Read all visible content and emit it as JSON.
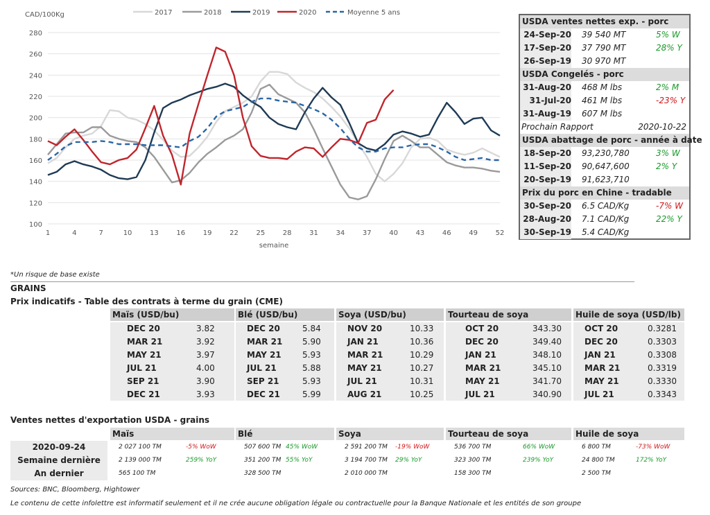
{
  "chart_data": {
    "type": "line",
    "ylabel": "CAD/100Kg",
    "xlabel": "semaine",
    "ylim": [
      100,
      280
    ],
    "xlim": [
      1,
      52
    ],
    "yticks": [
      "100",
      "120",
      "140",
      "160",
      "180",
      "200",
      "220",
      "240",
      "260",
      "280"
    ],
    "xticks": [
      "1",
      "4",
      "7",
      "10",
      "13",
      "16",
      "19",
      "22",
      "25",
      "28",
      "31",
      "34",
      "37",
      "40",
      "43",
      "46",
      "49",
      "52"
    ],
    "series": [
      {
        "name": "2017",
        "color": "#d8d8d8",
        "dash": false,
        "x": [
          1,
          2,
          3,
          4,
          5,
          6,
          7,
          8,
          9,
          10,
          11,
          12,
          13,
          14,
          15,
          16,
          17,
          18,
          19,
          20,
          21,
          22,
          23,
          24,
          25,
          26,
          27,
          28,
          29,
          30,
          31,
          32,
          33,
          34,
          35,
          36,
          37,
          38,
          39,
          40,
          41,
          42,
          43,
          44,
          45,
          46,
          47,
          48,
          49,
          50,
          51,
          52
        ],
        "values": [
          157,
          162,
          172,
          180,
          183,
          185,
          192,
          207,
          206,
          200,
          198,
          194,
          188,
          179,
          169,
          163,
          164,
          172,
          182,
          196,
          206,
          210,
          214,
          220,
          234,
          243,
          243,
          241,
          233,
          228,
          224,
          218,
          210,
          201,
          190,
          176,
          163,
          147,
          140,
          147,
          157,
          172,
          180,
          181,
          178,
          170,
          167,
          165,
          167,
          171,
          167,
          163
        ]
      },
      {
        "name": "2018",
        "color": "#9a9a9a",
        "dash": false,
        "x": [
          1,
          2,
          3,
          4,
          5,
          6,
          7,
          8,
          9,
          10,
          11,
          12,
          13,
          14,
          15,
          16,
          17,
          18,
          19,
          20,
          21,
          22,
          23,
          24,
          25,
          26,
          27,
          28,
          29,
          30,
          31,
          32,
          33,
          34,
          35,
          36,
          37,
          38,
          39,
          40,
          41,
          42,
          43,
          44,
          45,
          46,
          47,
          48,
          49,
          50,
          51,
          52
        ],
        "values": [
          165,
          175,
          185,
          186,
          186,
          191,
          191,
          183,
          180,
          178,
          177,
          172,
          163,
          151,
          139,
          141,
          148,
          158,
          166,
          172,
          179,
          183,
          189,
          205,
          227,
          231,
          222,
          218,
          214,
          205,
          189,
          171,
          154,
          137,
          125,
          123,
          126,
          142,
          161,
          178,
          183,
          178,
          172,
          172,
          165,
          158,
          155,
          153,
          153,
          152,
          150,
          149
        ]
      },
      {
        "name": "2019",
        "color": "#1e3a55",
        "dash": false,
        "x": [
          1,
          2,
          3,
          4,
          5,
          6,
          7,
          8,
          9,
          10,
          11,
          12,
          13,
          14,
          15,
          16,
          17,
          18,
          19,
          20,
          21,
          22,
          23,
          24,
          25,
          26,
          27,
          28,
          29,
          30,
          31,
          32,
          33,
          34,
          35,
          36,
          37,
          38,
          39,
          40,
          41,
          42,
          43,
          44,
          45,
          46,
          47,
          48,
          49,
          50,
          51,
          52
        ],
        "values": [
          146,
          149,
          156,
          159,
          156,
          154,
          151,
          146,
          143,
          142,
          144,
          160,
          186,
          209,
          214,
          217,
          221,
          224,
          227,
          229,
          232,
          229,
          221,
          215,
          210,
          200,
          194,
          191,
          189,
          205,
          218,
          228,
          219,
          212,
          195,
          176,
          171,
          169,
          175,
          184,
          187,
          185,
          182,
          184,
          200,
          214,
          205,
          194,
          199,
          200,
          188,
          183
        ]
      },
      {
        "name": "2020",
        "color": "#c0252c",
        "dash": false,
        "x": [
          1,
          2,
          3,
          4,
          5,
          6,
          7,
          8,
          9,
          10,
          11,
          12,
          13,
          14,
          15,
          16,
          17,
          18,
          19,
          20,
          21,
          22,
          23,
          24,
          25,
          26,
          27,
          28,
          29,
          30,
          31,
          32,
          33,
          34,
          35,
          36,
          37,
          38,
          39,
          40
        ],
        "values": [
          178,
          174,
          182,
          189,
          179,
          168,
          158,
          156,
          160,
          162,
          170,
          190,
          211,
          183,
          165,
          137,
          185,
          213,
          240,
          266,
          262,
          240,
          200,
          173,
          164,
          162,
          162,
          161,
          168,
          172,
          171,
          163,
          172,
          180,
          179,
          176,
          195,
          198,
          217,
          226
        ]
      },
      {
        "name": "Moyenne 5 ans",
        "color": "#2a66a6",
        "dash": true,
        "x": [
          1,
          2,
          3,
          4,
          5,
          6,
          7,
          8,
          9,
          10,
          11,
          12,
          13,
          14,
          15,
          16,
          17,
          18,
          19,
          20,
          21,
          22,
          23,
          24,
          25,
          26,
          27,
          28,
          29,
          30,
          31,
          32,
          33,
          34,
          35,
          36,
          37,
          38,
          39,
          40,
          41,
          42,
          43,
          44,
          45,
          46,
          47,
          48,
          49,
          50,
          51,
          52
        ],
        "values": [
          160,
          166,
          173,
          177,
          177,
          177,
          178,
          177,
          175,
          175,
          175,
          174,
          174,
          174,
          173,
          172,
          178,
          182,
          190,
          201,
          206,
          208,
          210,
          215,
          218,
          218,
          216,
          215,
          214,
          211,
          208,
          204,
          198,
          190,
          180,
          172,
          168,
          168,
          171,
          172,
          172,
          174,
          175,
          175,
          172,
          168,
          163,
          160,
          161,
          162,
          160,
          160
        ]
      }
    ]
  },
  "sidebox": {
    "sections": [
      {
        "title": "USDA ventes nettes exp. - porc",
        "rows": [
          {
            "date": "24-Sep-20",
            "val": "39 540  MT",
            "chg": "5% W",
            "cls": "pos"
          },
          {
            "date": "17-Sep-20",
            "val": "37 790  MT",
            "chg": "28% Y",
            "cls": "pos"
          },
          {
            "date": "26-Sep-19",
            "val": "30 970  MT",
            "chg": "",
            "cls": ""
          }
        ]
      },
      {
        "title": "USDA Congelés - porc",
        "rows": [
          {
            "date": "31-Aug-20",
            "val": "468 M lbs",
            "chg": "2% M",
            "cls": "pos"
          },
          {
            "date": "31-Jul-20",
            "val": "461 M lbs",
            "chg": "-23% Y",
            "cls": "neg"
          },
          {
            "date": "31-Aug-19",
            "val": "607 M lbs",
            "chg": "",
            "cls": ""
          }
        ]
      },
      {
        "rapport_label": "Prochain Rapport",
        "rapport_date": "2020-10-22"
      },
      {
        "title": "USDA abattage de porc - année à date",
        "rows": [
          {
            "date": "18-Sep-20",
            "val": "93,230,780",
            "chg": "3% W",
            "cls": "pos"
          },
          {
            "date": "11-Sep-20",
            "val": "90,647,600",
            "chg": "2% Y",
            "cls": "pos"
          },
          {
            "date": "20-Sep-19",
            "val": "91,623,710",
            "chg": "",
            "cls": ""
          }
        ]
      },
      {
        "title": "Prix du porc en Chine - tradable",
        "rows": [
          {
            "date": "30-Sep-20",
            "val": "6.5 CAD/Kg",
            "chg": "-7% W",
            "cls": "neg"
          },
          {
            "date": "28-Aug-20",
            "val": "7.1 CAD/Kg",
            "chg": "22% Y",
            "cls": "pos"
          },
          {
            "date": "30-Sep-19",
            "val": "5.4 CAD/Kg",
            "chg": "",
            "cls": ""
          }
        ]
      }
    ]
  },
  "note": "*Un risque de base existe",
  "grains_title": "GRAINS",
  "prix_title": "Prix indicatifs - Table des contrats à terme du grain (CME)",
  "cme": [
    {
      "name": "Maïs (USD/bu)",
      "rows": [
        [
          "DEC 20",
          "3.82"
        ],
        [
          "MAR 21",
          "3.92"
        ],
        [
          "MAY 21",
          "3.97"
        ],
        [
          "JUL 21",
          "4.00"
        ],
        [
          "SEP 21",
          "3.90"
        ],
        [
          "DEC 21",
          "3.93"
        ]
      ]
    },
    {
      "name": "Blé (USD/bu)",
      "rows": [
        [
          "DEC 20",
          "5.84"
        ],
        [
          "MAR 21",
          "5.90"
        ],
        [
          "MAY 21",
          "5.93"
        ],
        [
          "JUL 21",
          "5.88"
        ],
        [
          "SEP 21",
          "5.93"
        ],
        [
          "DEC 21",
          "5.99"
        ]
      ]
    },
    {
      "name": "Soya (USD/bu)",
      "rows": [
        [
          "NOV 20",
          "10.33"
        ],
        [
          "JAN 21",
          "10.36"
        ],
        [
          "MAR 21",
          "10.29"
        ],
        [
          "MAY 21",
          "10.27"
        ],
        [
          "JUL 21",
          "10.31"
        ],
        [
          "AUG 21",
          "10.25"
        ]
      ]
    },
    {
      "name": "Tourteau de soya (USD/ST)",
      "rows": [
        [
          "OCT 20",
          "343.30"
        ],
        [
          "DEC 20",
          "349.40"
        ],
        [
          "JAN 21",
          "348.10"
        ],
        [
          "MAR 21",
          "345.10"
        ],
        [
          "MAY 21",
          "341.70"
        ],
        [
          "JUL 21",
          "340.90"
        ]
      ]
    },
    {
      "name": "Huile de soya (USD/lb)",
      "rows": [
        [
          "OCT 20",
          "0.3281"
        ],
        [
          "DEC 20",
          "0.3303"
        ],
        [
          "JAN 21",
          "0.3308"
        ],
        [
          "MAR 21",
          "0.3319"
        ],
        [
          "MAY 21",
          "0.3330"
        ],
        [
          "JUL 21",
          "0.3343"
        ]
      ]
    }
  ],
  "ventes_title": "Ventes nettes d'exportation USDA - grains",
  "ventes": {
    "row_labels": [
      "2020-09-24",
      "Semaine dernière",
      "An dernier"
    ],
    "cols": [
      {
        "name": "Maïs",
        "vals": [
          "2 027 100 TM",
          "2 139 000 TM",
          "565 100 TM"
        ],
        "chg": [
          [
            "-5% WoW",
            "neg"
          ],
          [
            "259% YoY",
            "pos"
          ],
          [
            "",
            ""
          ]
        ]
      },
      {
        "name": "Blé",
        "vals": [
          "507 600 TM",
          "351 200 TM",
          "328 500 TM"
        ],
        "chg": [
          [
            "45% WoW",
            "pos"
          ],
          [
            "55% YoY",
            "pos"
          ],
          [
            "",
            ""
          ]
        ]
      },
      {
        "name": "Soya",
        "vals": [
          "2 591 200 TM",
          "3 194 700 TM",
          "2 010 000 TM"
        ],
        "chg": [
          [
            "-19% WoW",
            "neg"
          ],
          [
            "29% YoY",
            "pos"
          ],
          [
            "",
            ""
          ]
        ]
      },
      {
        "name": "Tourteau de soya",
        "vals": [
          "536 700 TM",
          "323 300 TM",
          "158 300 TM"
        ],
        "chg": [
          [
            "66% WoW",
            "pos"
          ],
          [
            "239% YoY",
            "pos"
          ],
          [
            "",
            ""
          ]
        ]
      },
      {
        "name": "Huile de soya",
        "vals": [
          "6 800 TM",
          "24 800 TM",
          "2 500 TM"
        ],
        "chg": [
          [
            "-73% WoW",
            "neg"
          ],
          [
            "172% YoY",
            "pos"
          ],
          [
            "",
            ""
          ]
        ]
      }
    ]
  },
  "sources": "Sources: BNC, Bloomberg, Hightower",
  "disclaimer": "Le contenu de cette infolettre est informatif seulement et il ne crée aucune obligation légale ou contractuelle pour la Banque Nationale et les entités de son groupe"
}
